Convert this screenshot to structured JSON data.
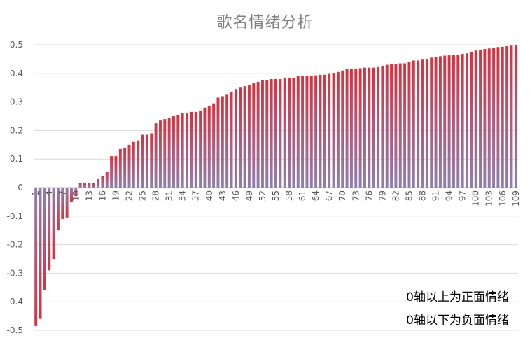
{
  "chart_data": {
    "type": "bar",
    "title": "歌名情绪分析",
    "xlabel": "",
    "ylabel": "",
    "ylim": [
      -0.5,
      0.5
    ],
    "yticks": [
      0.5,
      0.4,
      0.3,
      0.2,
      0.1,
      0,
      -0.1,
      -0.2,
      -0.3,
      -0.4,
      -0.5
    ],
    "ytick_labels": [
      "0.5",
      "0.4",
      "0.3",
      "0.2",
      "0.1",
      "0",
      "-0.1",
      "-0.2",
      "-0.3",
      "-0.4",
      "-0.5"
    ],
    "xtick_labels": [
      "1",
      "4",
      "7",
      "10",
      "13",
      "16",
      "19",
      "22",
      "25",
      "28",
      "31",
      "34",
      "37",
      "40",
      "43",
      "46",
      "49",
      "52",
      "55",
      "58",
      "61",
      "64",
      "67",
      "70",
      "73",
      "76",
      "79",
      "82",
      "85",
      "88",
      "91",
      "94",
      "97",
      "100",
      "103",
      "106",
      "109"
    ],
    "grid": true,
    "legend": "none",
    "categories": [
      "1",
      "2",
      "3",
      "4",
      "5",
      "6",
      "7",
      "8",
      "9",
      "10",
      "11",
      "12",
      "13",
      "14",
      "15",
      "16",
      "17",
      "18",
      "19",
      "20",
      "21",
      "22",
      "23",
      "24",
      "25",
      "26",
      "27",
      "28",
      "29",
      "30",
      "31",
      "32",
      "33",
      "34",
      "35",
      "36",
      "37",
      "38",
      "39",
      "40",
      "41",
      "42",
      "43",
      "44",
      "45",
      "46",
      "47",
      "48",
      "49",
      "50",
      "51",
      "52",
      "53",
      "54",
      "55",
      "56",
      "57",
      "58",
      "59",
      "60",
      "61",
      "62",
      "63",
      "64",
      "65",
      "66",
      "67",
      "68",
      "69",
      "70",
      "71",
      "72",
      "73",
      "74",
      "75",
      "76",
      "77",
      "78",
      "79",
      "80",
      "81",
      "82",
      "83",
      "84",
      "85",
      "86",
      "87",
      "88",
      "89",
      "90",
      "91",
      "92",
      "93",
      "94",
      "95",
      "96",
      "97",
      "98",
      "99",
      "100",
      "101",
      "102",
      "103",
      "104",
      "105",
      "106",
      "107",
      "108",
      "109"
    ],
    "values": [
      -0.485,
      -0.46,
      -0.36,
      -0.29,
      -0.25,
      -0.15,
      -0.11,
      -0.105,
      -0.05,
      -0.03,
      0.015,
      0.015,
      0.015,
      0.015,
      0.03,
      0.04,
      0.055,
      0.11,
      0.11,
      0.135,
      0.14,
      0.15,
      0.16,
      0.165,
      0.185,
      0.185,
      0.19,
      0.225,
      0.235,
      0.24,
      0.245,
      0.25,
      0.255,
      0.26,
      0.26,
      0.265,
      0.265,
      0.27,
      0.28,
      0.285,
      0.295,
      0.315,
      0.32,
      0.325,
      0.335,
      0.345,
      0.35,
      0.355,
      0.36,
      0.365,
      0.37,
      0.375,
      0.375,
      0.38,
      0.38,
      0.38,
      0.385,
      0.385,
      0.385,
      0.39,
      0.39,
      0.39,
      0.39,
      0.393,
      0.395,
      0.395,
      0.398,
      0.4,
      0.405,
      0.41,
      0.415,
      0.415,
      0.415,
      0.418,
      0.42,
      0.42,
      0.42,
      0.422,
      0.425,
      0.43,
      0.432,
      0.432,
      0.435,
      0.435,
      0.44,
      0.445,
      0.445,
      0.448,
      0.45,
      0.455,
      0.458,
      0.46,
      0.462,
      0.463,
      0.464,
      0.465,
      0.468,
      0.47,
      0.475,
      0.48,
      0.483,
      0.485,
      0.487,
      0.49,
      0.492,
      0.493,
      0.495,
      0.497,
      0.498
    ],
    "annotations": [
      "0轴以上为正面情绪",
      "0轴以下为负面情绪"
    ],
    "colors": {
      "bar_top": "#d9303e",
      "bar_bottom": "#7f7fb2",
      "grid": "#d9d9d9",
      "axis_text": "#595959"
    }
  }
}
